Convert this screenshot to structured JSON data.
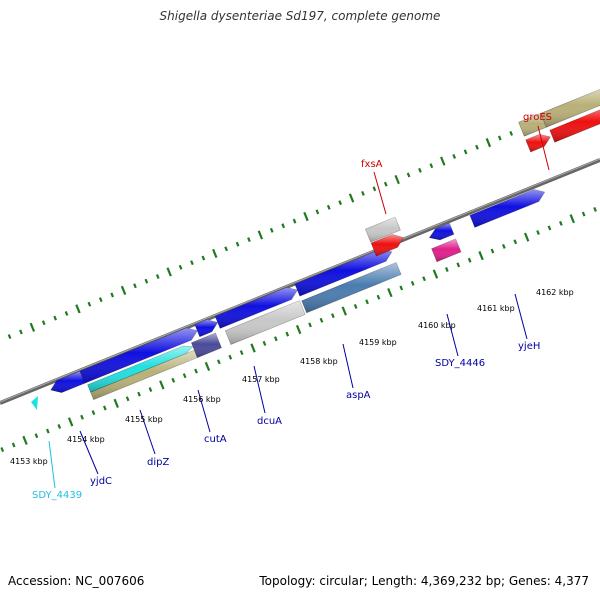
{
  "title": "Shigella dysenteriae Sd197, complete genome",
  "footer": {
    "accession": "Accession: NC_007606",
    "topology": "Topology: circular; Length: 4,369,232 bp; Genes: 4,377"
  },
  "colors": {
    "forward_cds": "#1010e0",
    "cyan_feature": "#20e0e0",
    "khaki_feature": "#b8b078",
    "gray_feature": "#c8c8c8",
    "red_feature": "#ee1010",
    "steel_feature": "#4a7cb0",
    "pink_feature": "#e0208c",
    "navy_feature": "#4a4a9a",
    "tick_green": "#207a20",
    "backbone": "#888888",
    "label_blue": "#0000a0",
    "label_red": "#cc0000",
    "label_cyan": "#20c0e0"
  },
  "kbp_markers": [
    {
      "label": "4153 kbp",
      "pos": 4153
    },
    {
      "label": "4154 kbp",
      "pos": 4154
    },
    {
      "label": "4155 kbp",
      "pos": 4155
    },
    {
      "label": "4156 kbp",
      "pos": 4156
    },
    {
      "label": "4157 kbp",
      "pos": 4157
    },
    {
      "label": "4158 kbp",
      "pos": 4158
    },
    {
      "label": "4159 kbp",
      "pos": 4159
    },
    {
      "label": "4160 kbp",
      "pos": 4160
    },
    {
      "label": "4161 kbp",
      "pos": 4161
    },
    {
      "label": "4162 kbp",
      "pos": 4162
    }
  ],
  "gene_labels": [
    {
      "name": "SDY_4439",
      "color": "cyan"
    },
    {
      "name": "yjdC",
      "color": "blue"
    },
    {
      "name": "dipZ",
      "color": "blue"
    },
    {
      "name": "cutA",
      "color": "blue"
    },
    {
      "name": "dcuA",
      "color": "blue"
    },
    {
      "name": "aspA",
      "color": "blue"
    },
    {
      "name": "SDY_4446",
      "color": "blue"
    },
    {
      "name": "yjeH",
      "color": "blue"
    },
    {
      "name": "fxsA",
      "color": "red"
    },
    {
      "name": "groES",
      "color": "red"
    }
  ]
}
